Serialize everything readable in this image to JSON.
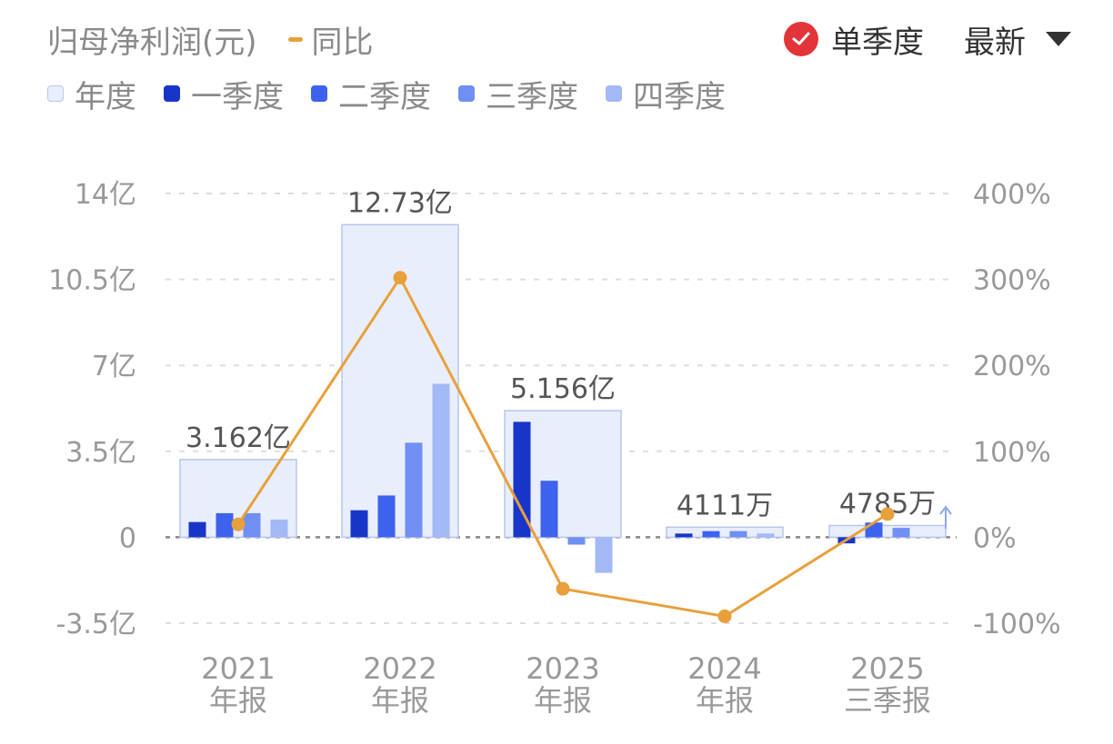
{
  "header": {
    "title": "归母净利润(元)",
    "yoy_label": "同比",
    "single_quarter_label": "单季度",
    "latest_label": "最新"
  },
  "legend": [
    {
      "label": "年度",
      "color": "#e9eefc",
      "border": "#b7c6ee"
    },
    {
      "label": "一季度",
      "color": "#1736c8"
    },
    {
      "label": "二季度",
      "color": "#3d62ee"
    },
    {
      "label": "三季度",
      "color": "#6f8ff2"
    },
    {
      "label": "四季度",
      "color": "#a3b8f6"
    }
  ],
  "chart_data": {
    "type": "bar",
    "categories": [
      "2021 年报",
      "2022 年报",
      "2023 年报",
      "2024 年报",
      "2025 三季报"
    ],
    "category_labels": [
      [
        "2021",
        "年报"
      ],
      [
        "2022",
        "年报"
      ],
      [
        "2023",
        "年报"
      ],
      [
        "2024",
        "年报"
      ],
      [
        "2025",
        "三季报"
      ]
    ],
    "annual": {
      "values": [
        3.162,
        12.73,
        5.156,
        0.4111,
        0.4785
      ],
      "labels": [
        "3.162亿",
        "12.73亿",
        "5.156亿",
        "4111万",
        "4785万"
      ]
    },
    "series": [
      {
        "name": "一季度",
        "values": [
          0.62,
          1.1,
          4.7,
          0.15,
          -0.25
        ]
      },
      {
        "name": "二季度",
        "values": [
          0.98,
          1.7,
          2.3,
          0.25,
          0.6
        ]
      },
      {
        "name": "三季度",
        "values": [
          0.98,
          3.85,
          -0.3,
          0.25,
          0.38
        ]
      },
      {
        "name": "四季度",
        "values": [
          0.72,
          6.25,
          -1.45,
          0.15,
          null
        ]
      }
    ],
    "yoy": {
      "name": "同比",
      "values": [
        15,
        302,
        -60,
        -92,
        27
      ]
    },
    "yticks_left": [
      14,
      10.5,
      7,
      3.5,
      0,
      -3.5
    ],
    "ytick_labels_left": [
      "14亿",
      "10.5亿",
      "7亿",
      "3.5亿",
      "0",
      "-3.5亿"
    ],
    "yticks_right": [
      400,
      300,
      200,
      100,
      0,
      -100
    ],
    "ytick_labels_right": [
      "400%",
      "300%",
      "200%",
      "100%",
      "0%",
      "-100%"
    ],
    "ylim_left": [
      -3.5,
      14
    ],
    "ylim_right": [
      -100,
      400
    ],
    "unit_left": "亿",
    "grid": true,
    "colors": {
      "annual_fill": "#e9eefc",
      "annual_border": "#b7c6ee",
      "yoy_line": "#e8a03c"
    }
  }
}
